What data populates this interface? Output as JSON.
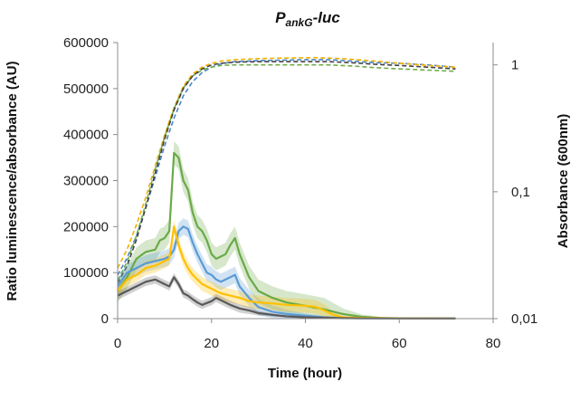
{
  "chart_data": {
    "type": "line",
    "title": "PankG-luc",
    "title_parts": {
      "main": "P",
      "subscript": "ankG",
      "suffix": "-luc"
    },
    "xlabel": "Time (hour)",
    "ylabel": "Ratio luminescence/absorbance (AU)",
    "y2label": "Absorbance (600nm)",
    "xlim": [
      0,
      80
    ],
    "ylim": [
      0,
      600000
    ],
    "y2lim": [
      0.01,
      1.5
    ],
    "y2_scale": "log",
    "x_ticks": [
      "0",
      "20",
      "40",
      "60",
      "80"
    ],
    "y_ticks": [
      "0",
      "100000",
      "200000",
      "300000",
      "400000",
      "500000",
      "600000"
    ],
    "y2_ticks": [
      "0,01",
      "0,1",
      "1"
    ],
    "grid": false,
    "legend": "none",
    "series": [
      {
        "color": "#6aaa47",
        "axis": "left",
        "style": "solid",
        "band": 25000,
        "points": [
          [
            0,
            60000
          ],
          [
            2,
            90000
          ],
          [
            4,
            130000
          ],
          [
            6,
            145000
          ],
          [
            8,
            150000
          ],
          [
            9,
            170000
          ],
          [
            10,
            175000
          ],
          [
            11,
            190000
          ],
          [
            12,
            360000
          ],
          [
            13,
            350000
          ],
          [
            14,
            300000
          ],
          [
            15,
            280000
          ],
          [
            16,
            230000
          ],
          [
            17,
            200000
          ],
          [
            18,
            190000
          ],
          [
            19,
            170000
          ],
          [
            20,
            140000
          ],
          [
            21,
            130000
          ],
          [
            22,
            135000
          ],
          [
            23,
            140000
          ],
          [
            24,
            160000
          ],
          [
            25,
            175000
          ],
          [
            26,
            140000
          ],
          [
            28,
            90000
          ],
          [
            30,
            60000
          ],
          [
            33,
            45000
          ],
          [
            36,
            35000
          ],
          [
            40,
            28000
          ],
          [
            44,
            20000
          ],
          [
            48,
            10000
          ],
          [
            52,
            4000
          ],
          [
            56,
            1500
          ],
          [
            60,
            800
          ],
          [
            66,
            300
          ],
          [
            72,
            100
          ]
        ]
      },
      {
        "color": "#5b9bd5",
        "axis": "left",
        "style": "solid",
        "band": 18000,
        "points": [
          [
            0,
            70000
          ],
          [
            2,
            100000
          ],
          [
            4,
            110000
          ],
          [
            6,
            120000
          ],
          [
            8,
            125000
          ],
          [
            10,
            130000
          ],
          [
            11,
            135000
          ],
          [
            12,
            150000
          ],
          [
            13,
            190000
          ],
          [
            14,
            200000
          ],
          [
            15,
            195000
          ],
          [
            16,
            165000
          ],
          [
            17,
            140000
          ],
          [
            18,
            120000
          ],
          [
            19,
            100000
          ],
          [
            20,
            95000
          ],
          [
            21,
            85000
          ],
          [
            22,
            80000
          ],
          [
            23,
            85000
          ],
          [
            24,
            90000
          ],
          [
            25,
            95000
          ],
          [
            26,
            70000
          ],
          [
            28,
            45000
          ],
          [
            30,
            25000
          ],
          [
            33,
            15000
          ],
          [
            36,
            10000
          ],
          [
            40,
            6000
          ],
          [
            44,
            3000
          ],
          [
            48,
            1500
          ],
          [
            52,
            700
          ],
          [
            60,
            300
          ],
          [
            72,
            100
          ]
        ]
      },
      {
        "color": "#ffc000",
        "axis": "left",
        "style": "solid",
        "band": 15000,
        "points": [
          [
            0,
            60000
          ],
          [
            2,
            85000
          ],
          [
            4,
            95000
          ],
          [
            6,
            110000
          ],
          [
            8,
            115000
          ],
          [
            10,
            125000
          ],
          [
            11,
            130000
          ],
          [
            12,
            200000
          ],
          [
            13,
            160000
          ],
          [
            14,
            130000
          ],
          [
            15,
            110000
          ],
          [
            16,
            95000
          ],
          [
            17,
            85000
          ],
          [
            18,
            75000
          ],
          [
            20,
            65000
          ],
          [
            22,
            55000
          ],
          [
            24,
            50000
          ],
          [
            26,
            45000
          ],
          [
            28,
            38000
          ],
          [
            30,
            35000
          ],
          [
            33,
            33000
          ],
          [
            36,
            30000
          ],
          [
            40,
            28000
          ],
          [
            42,
            26000
          ],
          [
            44,
            18000
          ],
          [
            46,
            8000
          ],
          [
            48,
            3000
          ],
          [
            52,
            1500
          ],
          [
            60,
            600
          ],
          [
            72,
            200
          ]
        ]
      },
      {
        "color": "#595959",
        "axis": "left",
        "style": "solid",
        "band": 9000,
        "points": [
          [
            0,
            50000
          ],
          [
            2,
            60000
          ],
          [
            4,
            70000
          ],
          [
            6,
            80000
          ],
          [
            8,
            85000
          ],
          [
            10,
            75000
          ],
          [
            11,
            70000
          ],
          [
            12,
            90000
          ],
          [
            13,
            75000
          ],
          [
            14,
            55000
          ],
          [
            15,
            50000
          ],
          [
            16,
            42000
          ],
          [
            17,
            35000
          ],
          [
            18,
            30000
          ],
          [
            20,
            38000
          ],
          [
            21,
            45000
          ],
          [
            22,
            40000
          ],
          [
            24,
            30000
          ],
          [
            26,
            22000
          ],
          [
            28,
            18000
          ],
          [
            30,
            12000
          ],
          [
            33,
            8000
          ],
          [
            36,
            5000
          ],
          [
            40,
            3000
          ],
          [
            44,
            2000
          ],
          [
            48,
            1000
          ],
          [
            52,
            500
          ],
          [
            60,
            300
          ],
          [
            72,
            100
          ]
        ]
      },
      {
        "color": "#4a86c8",
        "axis": "right",
        "style": "dashed",
        "points": [
          [
            0,
            0.022
          ],
          [
            2,
            0.03
          ],
          [
            4,
            0.045
          ],
          [
            6,
            0.075
          ],
          [
            8,
            0.13
          ],
          [
            10,
            0.23
          ],
          [
            12,
            0.38
          ],
          [
            14,
            0.57
          ],
          [
            16,
            0.74
          ],
          [
            18,
            0.87
          ],
          [
            20,
            0.96
          ],
          [
            22,
            1.02
          ],
          [
            25,
            1.06
          ],
          [
            30,
            1.08
          ],
          [
            40,
            1.1
          ],
          [
            45,
            1.1
          ],
          [
            50,
            1.07
          ],
          [
            55,
            1.04
          ],
          [
            60,
            1.03
          ],
          [
            66,
            1.0
          ],
          [
            72,
            0.96
          ]
        ]
      },
      {
        "color": "#f0b000",
        "axis": "right",
        "style": "dashed",
        "points": [
          [
            0,
            0.025
          ],
          [
            2,
            0.035
          ],
          [
            4,
            0.055
          ],
          [
            6,
            0.09
          ],
          [
            8,
            0.16
          ],
          [
            10,
            0.28
          ],
          [
            12,
            0.46
          ],
          [
            14,
            0.68
          ],
          [
            16,
            0.85
          ],
          [
            18,
            0.96
          ],
          [
            20,
            1.03
          ],
          [
            22,
            1.07
          ],
          [
            25,
            1.1
          ],
          [
            30,
            1.12
          ],
          [
            35,
            1.13
          ],
          [
            42,
            1.14
          ],
          [
            48,
            1.12
          ],
          [
            55,
            1.07
          ],
          [
            60,
            1.03
          ],
          [
            66,
            0.99
          ],
          [
            72,
            0.96
          ]
        ]
      },
      {
        "color": "#70ad47",
        "axis": "right",
        "style": "dashed",
        "points": [
          [
            0,
            0.02
          ],
          [
            2,
            0.028
          ],
          [
            4,
            0.045
          ],
          [
            6,
            0.08
          ],
          [
            8,
            0.15
          ],
          [
            10,
            0.27
          ],
          [
            12,
            0.45
          ],
          [
            14,
            0.66
          ],
          [
            16,
            0.82
          ],
          [
            18,
            0.91
          ],
          [
            20,
            0.96
          ],
          [
            22,
            0.99
          ],
          [
            25,
            1.0
          ],
          [
            30,
            1.0
          ],
          [
            35,
            1.0
          ],
          [
            40,
            1.0
          ],
          [
            45,
            1.0
          ],
          [
            50,
            0.98
          ],
          [
            55,
            0.95
          ],
          [
            60,
            0.93
          ],
          [
            66,
            0.91
          ],
          [
            72,
            0.89
          ]
        ]
      },
      {
        "color": "#404040",
        "axis": "right",
        "style": "dashed",
        "points": [
          [
            0,
            0.019
          ],
          [
            2,
            0.026
          ],
          [
            4,
            0.042
          ],
          [
            6,
            0.075
          ],
          [
            8,
            0.14
          ],
          [
            10,
            0.26
          ],
          [
            12,
            0.44
          ],
          [
            14,
            0.65
          ],
          [
            16,
            0.82
          ],
          [
            18,
            0.93
          ],
          [
            20,
            1.0
          ],
          [
            22,
            1.03
          ],
          [
            25,
            1.05
          ],
          [
            30,
            1.06
          ],
          [
            35,
            1.06
          ],
          [
            40,
            1.06
          ],
          [
            45,
            1.06
          ],
          [
            50,
            1.04
          ],
          [
            55,
            1.01
          ],
          [
            60,
            0.99
          ],
          [
            66,
            0.96
          ],
          [
            72,
            0.93
          ]
        ]
      }
    ]
  }
}
